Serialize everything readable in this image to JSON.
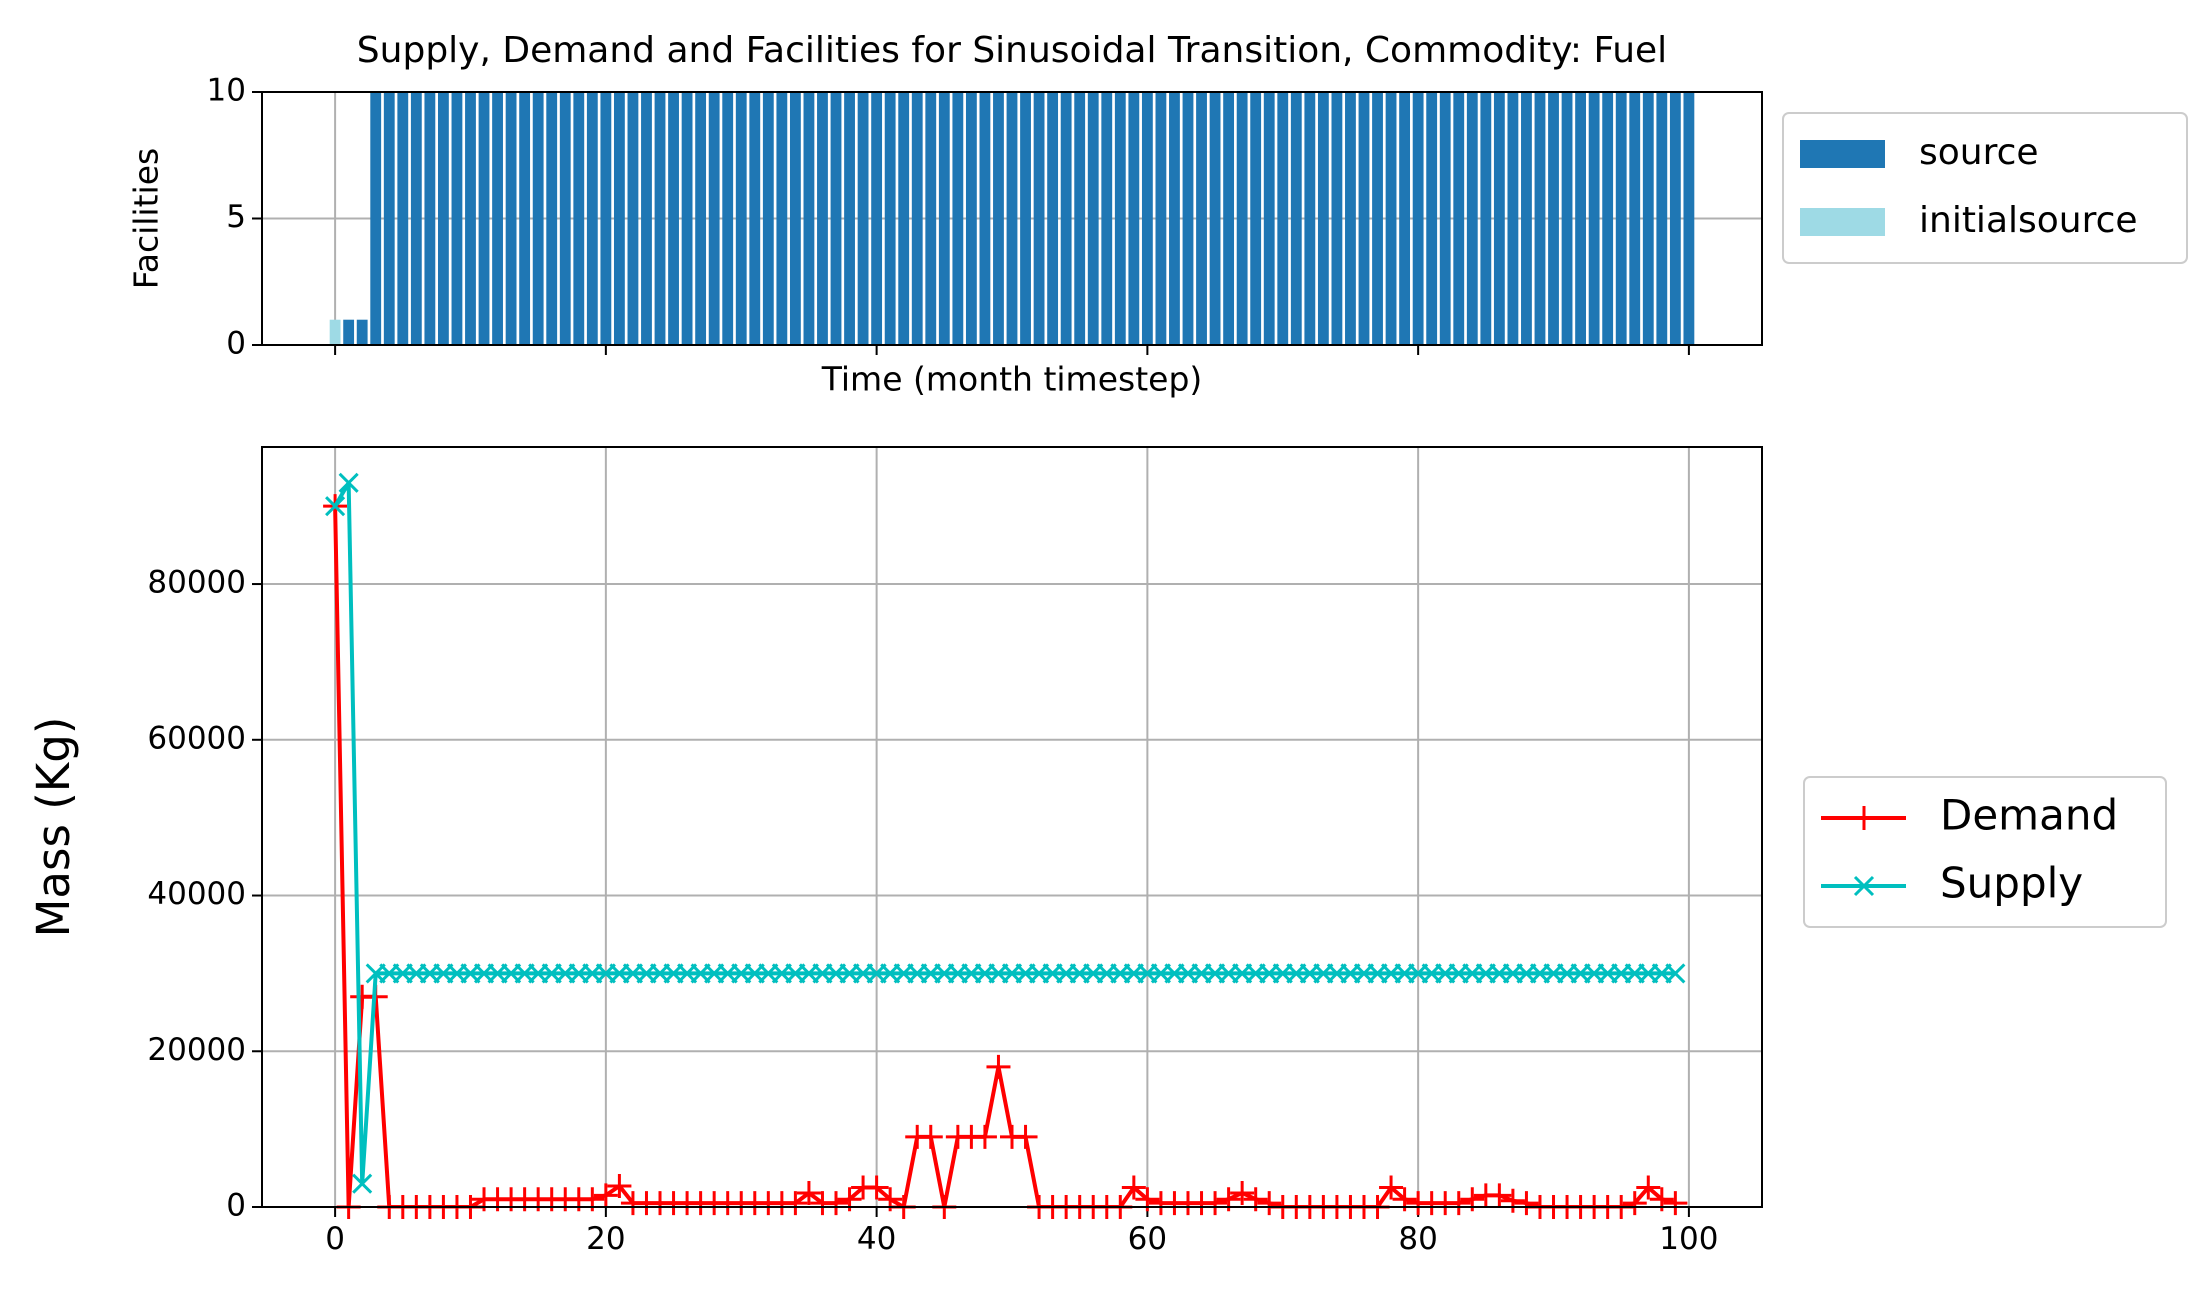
{
  "chart_data": [
    {
      "type": "bar",
      "title": "Supply, Demand and Facilities for Sinusoidal Transition, Commodity: Fuel",
      "xlabel": "Time (month timestep)",
      "ylabel": "Facilities",
      "x": [
        0,
        1,
        2,
        3,
        4,
        5,
        6,
        7,
        8,
        9,
        10,
        11,
        12,
        13,
        14,
        15,
        16,
        17,
        18,
        19,
        20,
        21,
        22,
        23,
        24,
        25,
        26,
        27,
        28,
        29,
        30,
        31,
        32,
        33,
        34,
        35,
        36,
        37,
        38,
        39,
        40,
        41,
        42,
        43,
        44,
        45,
        46,
        47,
        48,
        49,
        50,
        51,
        52,
        53,
        54,
        55,
        56,
        57,
        58,
        59,
        60,
        61,
        62,
        63,
        64,
        65,
        66,
        67,
        68,
        69,
        70,
        71,
        72,
        73,
        74,
        75,
        76,
        77,
        78,
        79,
        80,
        81,
        82,
        83,
        84,
        85,
        86,
        87,
        88,
        89,
        90,
        91,
        92,
        93,
        94,
        95,
        96,
        97,
        98,
        99,
        100
      ],
      "series": [
        {
          "name": "source",
          "color": "#1f77b4",
          "values": [
            0,
            1,
            1,
            10,
            10,
            10,
            10,
            10,
            10,
            10,
            10,
            10,
            10,
            10,
            10,
            10,
            10,
            10,
            10,
            10,
            10,
            10,
            10,
            10,
            10,
            10,
            10,
            10,
            10,
            10,
            10,
            10,
            10,
            10,
            10,
            10,
            10,
            10,
            10,
            10,
            10,
            10,
            10,
            10,
            10,
            10,
            10,
            10,
            10,
            10,
            10,
            10,
            10,
            10,
            10,
            10,
            10,
            10,
            10,
            10,
            10,
            10,
            10,
            10,
            10,
            10,
            10,
            10,
            10,
            10,
            10,
            10,
            10,
            10,
            10,
            10,
            10,
            10,
            10,
            10,
            10,
            10,
            10,
            10,
            10,
            10,
            10,
            10,
            10,
            10,
            10,
            10,
            10,
            10,
            10,
            10,
            10,
            10,
            10,
            10,
            10
          ]
        },
        {
          "name": "initialsource",
          "color": "#9edae5",
          "values": [
            1,
            0,
            0,
            0,
            0,
            0,
            0,
            0,
            0,
            0,
            0,
            0,
            0,
            0,
            0,
            0,
            0,
            0,
            0,
            0,
            0,
            0,
            0,
            0,
            0,
            0,
            0,
            0,
            0,
            0,
            0,
            0,
            0,
            0,
            0,
            0,
            0,
            0,
            0,
            0,
            0,
            0,
            0,
            0,
            0,
            0,
            0,
            0,
            0,
            0,
            0,
            0,
            0,
            0,
            0,
            0,
            0,
            0,
            0,
            0,
            0,
            0,
            0,
            0,
            0,
            0,
            0,
            0,
            0,
            0,
            0,
            0,
            0,
            0,
            0,
            0,
            0,
            0,
            0,
            0,
            0,
            0,
            0,
            0,
            0,
            0,
            0,
            0,
            0,
            0,
            0,
            0,
            0,
            0,
            0,
            0,
            0,
            0,
            0,
            0,
            0
          ]
        }
      ],
      "xlim": [
        -5.4,
        105.4
      ],
      "ylim": [
        0,
        10
      ],
      "yticks": [
        0,
        5,
        10
      ],
      "grid": true,
      "legend": "upper right"
    },
    {
      "type": "line",
      "ylabel": "Mass (Kg)",
      "x": [
        0,
        1,
        2,
        3,
        4,
        5,
        6,
        7,
        8,
        9,
        10,
        11,
        12,
        13,
        14,
        15,
        16,
        17,
        18,
        19,
        20,
        21,
        22,
        23,
        24,
        25,
        26,
        27,
        28,
        29,
        30,
        31,
        32,
        33,
        34,
        35,
        36,
        37,
        38,
        39,
        40,
        41,
        42,
        43,
        44,
        45,
        46,
        47,
        48,
        49,
        50,
        51,
        52,
        53,
        54,
        55,
        56,
        57,
        58,
        59,
        60,
        61,
        62,
        63,
        64,
        65,
        66,
        67,
        68,
        69,
        70,
        71,
        72,
        73,
        74,
        75,
        76,
        77,
        78,
        79,
        80,
        81,
        82,
        83,
        84,
        85,
        86,
        87,
        88,
        89,
        90,
        91,
        92,
        93,
        94,
        95,
        96,
        97,
        98,
        99
      ],
      "series": [
        {
          "name": "Demand",
          "color": "#ff0000",
          "marker": "+",
          "values": [
            90000,
            0,
            27000,
            27000,
            0,
            0,
            0,
            0,
            0,
            0,
            0,
            1000,
            1000,
            1000,
            1000,
            1000,
            1000,
            1000,
            1000,
            1000,
            1500,
            2700,
            500,
            500,
            500,
            500,
            500,
            500,
            500,
            500,
            500,
            500,
            500,
            500,
            500,
            1800,
            500,
            500,
            1000,
            2500,
            2500,
            1000,
            0,
            9000,
            9000,
            0,
            9000,
            9000,
            9000,
            18000,
            9000,
            9000,
            0,
            0,
            0,
            0,
            0,
            0,
            0,
            2500,
            1000,
            500,
            500,
            500,
            500,
            500,
            1000,
            1800,
            1000,
            500,
            0,
            0,
            0,
            0,
            0,
            0,
            0,
            0,
            2500,
            1000,
            500,
            500,
            500,
            500,
            1000,
            1500,
            1500,
            800,
            500,
            0,
            0,
            0,
            0,
            0,
            0,
            0,
            500,
            2500,
            1000,
            500
          ]
        },
        {
          "name": "Supply",
          "color": "#00bfbf",
          "marker": "x",
          "values": [
            90000,
            93000,
            3000,
            30000,
            30000,
            30000,
            30000,
            30000,
            30000,
            30000,
            30000,
            30000,
            30000,
            30000,
            30000,
            30000,
            30000,
            30000,
            30000,
            30000,
            30000,
            30000,
            30000,
            30000,
            30000,
            30000,
            30000,
            30000,
            30000,
            30000,
            30000,
            30000,
            30000,
            30000,
            30000,
            30000,
            30000,
            30000,
            30000,
            30000,
            30000,
            30000,
            30000,
            30000,
            30000,
            30000,
            30000,
            30000,
            30000,
            30000,
            30000,
            30000,
            30000,
            30000,
            30000,
            30000,
            30000,
            30000,
            30000,
            30000,
            30000,
            30000,
            30000,
            30000,
            30000,
            30000,
            30000,
            30000,
            30000,
            30000,
            30000,
            30000,
            30000,
            30000,
            30000,
            30000,
            30000,
            30000,
            30000,
            30000,
            30000,
            30000,
            30000,
            30000,
            30000,
            30000,
            30000,
            30000,
            30000,
            30000,
            30000,
            30000,
            30000,
            30000,
            30000,
            30000,
            30000,
            30000,
            30000,
            30000
          ]
        }
      ],
      "xlim": [
        -5.4,
        105.4
      ],
      "xticks": [
        0,
        20,
        40,
        60,
        80,
        100
      ],
      "ylim": [
        0,
        97600
      ],
      "yticks": [
        0,
        20000,
        40000,
        60000,
        80000
      ],
      "grid": true,
      "legend": "lower right"
    }
  ]
}
